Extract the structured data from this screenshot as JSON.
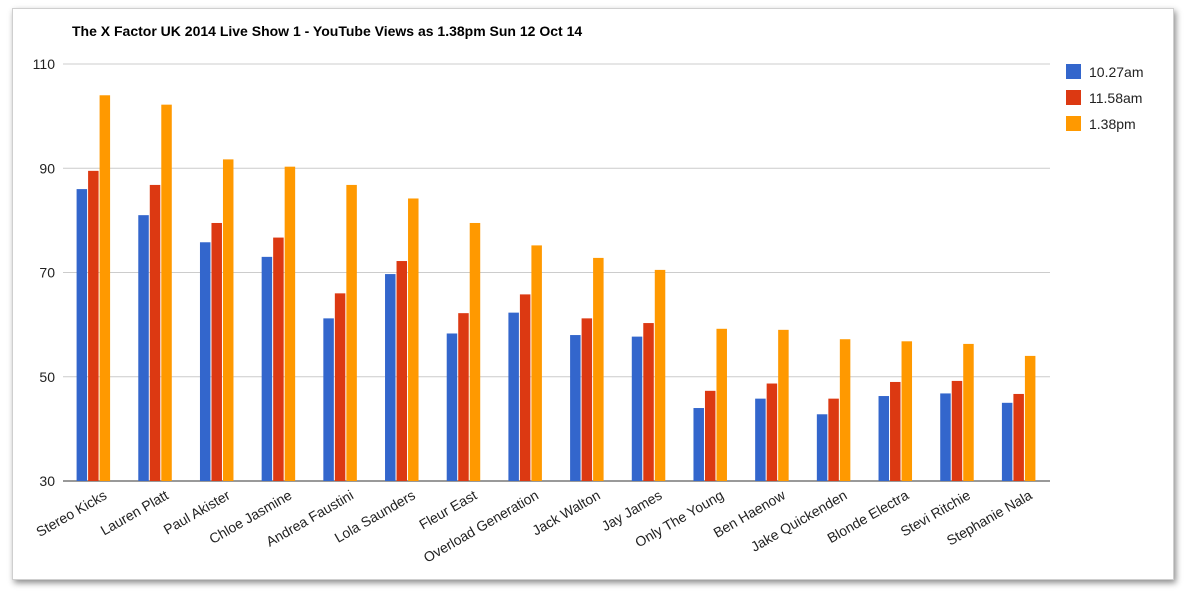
{
  "chart_data": {
    "type": "bar",
    "title": "The X Factor UK 2014 Live Show 1 - YouTube Views as 1.38pm Sun 12 Oct 14",
    "xlabel": "",
    "ylabel": "",
    "ylim": [
      30,
      110
    ],
    "yticks": [
      "110",
      "90",
      "70",
      "50",
      "30"
    ],
    "grid": true,
    "legend_position": "right",
    "categories": [
      "Stereo Kicks",
      "Lauren Platt",
      "Paul Akister",
      "Chloe Jasmine",
      "Andrea Faustini",
      "Lola Saunders",
      "Fleur East",
      "Overload Generation",
      "Jack Walton",
      "Jay James",
      "Only The Young",
      "Ben Haenow",
      "Jake Quickenden",
      "Blonde Electra",
      "Stevi Ritchie",
      "Stephanie Nala"
    ],
    "series": [
      {
        "name": "10.27am",
        "color": "#3366cc",
        "values": [
          86,
          81,
          75.8,
          73,
          61.2,
          69.7,
          58.3,
          62.3,
          58,
          57.7,
          44,
          45.8,
          42.8,
          46.3,
          46.8,
          45
        ]
      },
      {
        "name": "11.58am",
        "color": "#dc3912",
        "values": [
          89.5,
          86.8,
          79.5,
          76.7,
          66,
          72.2,
          62.2,
          65.8,
          61.2,
          60.3,
          47.3,
          48.7,
          45.8,
          49,
          49.2,
          46.7
        ]
      },
      {
        "name": "1.38pm",
        "color": "#ff9900",
        "values": [
          104,
          102.2,
          91.7,
          90.3,
          86.8,
          84.2,
          79.5,
          75.2,
          72.8,
          70.5,
          59.2,
          59,
          57.2,
          56.8,
          56.3,
          54
        ]
      }
    ]
  }
}
